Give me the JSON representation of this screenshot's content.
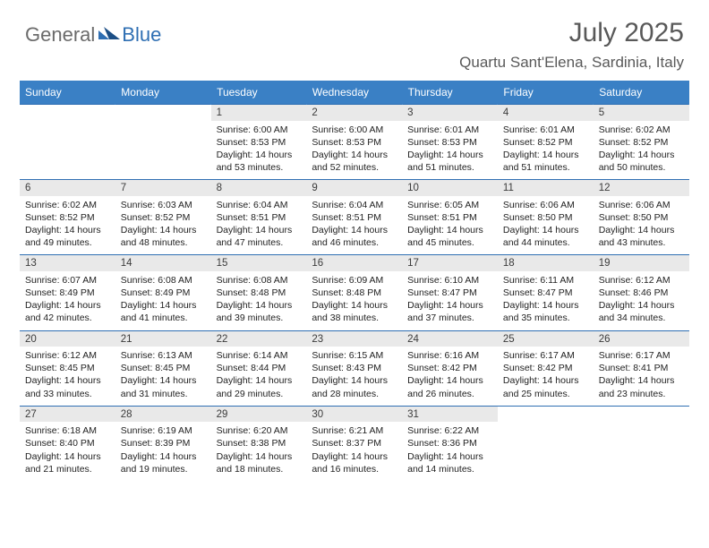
{
  "brand": {
    "part1": "General",
    "part2": "Blue"
  },
  "title": "July 2025",
  "location": "Quartu Sant'Elena, Sardinia, Italy",
  "colors": {
    "header_bg": "#3a80c5",
    "header_text": "#ffffff",
    "daynum_bg": "#e9e9e9",
    "row_divider": "#2f6fb3",
    "title_color": "#595959",
    "logo_gray": "#6b6b6b",
    "logo_blue": "#2f6fb3"
  },
  "weekdays": [
    "Sunday",
    "Monday",
    "Tuesday",
    "Wednesday",
    "Thursday",
    "Friday",
    "Saturday"
  ],
  "weeks": [
    [
      null,
      null,
      {
        "n": "1",
        "sr": "6:00 AM",
        "ss": "8:53 PM",
        "dl": "14 hours and 53 minutes."
      },
      {
        "n": "2",
        "sr": "6:00 AM",
        "ss": "8:53 PM",
        "dl": "14 hours and 52 minutes."
      },
      {
        "n": "3",
        "sr": "6:01 AM",
        "ss": "8:53 PM",
        "dl": "14 hours and 51 minutes."
      },
      {
        "n": "4",
        "sr": "6:01 AM",
        "ss": "8:52 PM",
        "dl": "14 hours and 51 minutes."
      },
      {
        "n": "5",
        "sr": "6:02 AM",
        "ss": "8:52 PM",
        "dl": "14 hours and 50 minutes."
      }
    ],
    [
      {
        "n": "6",
        "sr": "6:02 AM",
        "ss": "8:52 PM",
        "dl": "14 hours and 49 minutes."
      },
      {
        "n": "7",
        "sr": "6:03 AM",
        "ss": "8:52 PM",
        "dl": "14 hours and 48 minutes."
      },
      {
        "n": "8",
        "sr": "6:04 AM",
        "ss": "8:51 PM",
        "dl": "14 hours and 47 minutes."
      },
      {
        "n": "9",
        "sr": "6:04 AM",
        "ss": "8:51 PM",
        "dl": "14 hours and 46 minutes."
      },
      {
        "n": "10",
        "sr": "6:05 AM",
        "ss": "8:51 PM",
        "dl": "14 hours and 45 minutes."
      },
      {
        "n": "11",
        "sr": "6:06 AM",
        "ss": "8:50 PM",
        "dl": "14 hours and 44 minutes."
      },
      {
        "n": "12",
        "sr": "6:06 AM",
        "ss": "8:50 PM",
        "dl": "14 hours and 43 minutes."
      }
    ],
    [
      {
        "n": "13",
        "sr": "6:07 AM",
        "ss": "8:49 PM",
        "dl": "14 hours and 42 minutes."
      },
      {
        "n": "14",
        "sr": "6:08 AM",
        "ss": "8:49 PM",
        "dl": "14 hours and 41 minutes."
      },
      {
        "n": "15",
        "sr": "6:08 AM",
        "ss": "8:48 PM",
        "dl": "14 hours and 39 minutes."
      },
      {
        "n": "16",
        "sr": "6:09 AM",
        "ss": "8:48 PM",
        "dl": "14 hours and 38 minutes."
      },
      {
        "n": "17",
        "sr": "6:10 AM",
        "ss": "8:47 PM",
        "dl": "14 hours and 37 minutes."
      },
      {
        "n": "18",
        "sr": "6:11 AM",
        "ss": "8:47 PM",
        "dl": "14 hours and 35 minutes."
      },
      {
        "n": "19",
        "sr": "6:12 AM",
        "ss": "8:46 PM",
        "dl": "14 hours and 34 minutes."
      }
    ],
    [
      {
        "n": "20",
        "sr": "6:12 AM",
        "ss": "8:45 PM",
        "dl": "14 hours and 33 minutes."
      },
      {
        "n": "21",
        "sr": "6:13 AM",
        "ss": "8:45 PM",
        "dl": "14 hours and 31 minutes."
      },
      {
        "n": "22",
        "sr": "6:14 AM",
        "ss": "8:44 PM",
        "dl": "14 hours and 29 minutes."
      },
      {
        "n": "23",
        "sr": "6:15 AM",
        "ss": "8:43 PM",
        "dl": "14 hours and 28 minutes."
      },
      {
        "n": "24",
        "sr": "6:16 AM",
        "ss": "8:42 PM",
        "dl": "14 hours and 26 minutes."
      },
      {
        "n": "25",
        "sr": "6:17 AM",
        "ss": "8:42 PM",
        "dl": "14 hours and 25 minutes."
      },
      {
        "n": "26",
        "sr": "6:17 AM",
        "ss": "8:41 PM",
        "dl": "14 hours and 23 minutes."
      }
    ],
    [
      {
        "n": "27",
        "sr": "6:18 AM",
        "ss": "8:40 PM",
        "dl": "14 hours and 21 minutes."
      },
      {
        "n": "28",
        "sr": "6:19 AM",
        "ss": "8:39 PM",
        "dl": "14 hours and 19 minutes."
      },
      {
        "n": "29",
        "sr": "6:20 AM",
        "ss": "8:38 PM",
        "dl": "14 hours and 18 minutes."
      },
      {
        "n": "30",
        "sr": "6:21 AM",
        "ss": "8:37 PM",
        "dl": "14 hours and 16 minutes."
      },
      {
        "n": "31",
        "sr": "6:22 AM",
        "ss": "8:36 PM",
        "dl": "14 hours and 14 minutes."
      },
      null,
      null
    ]
  ],
  "labels": {
    "sunrise": "Sunrise: ",
    "sunset": "Sunset: ",
    "daylight": "Daylight: "
  }
}
